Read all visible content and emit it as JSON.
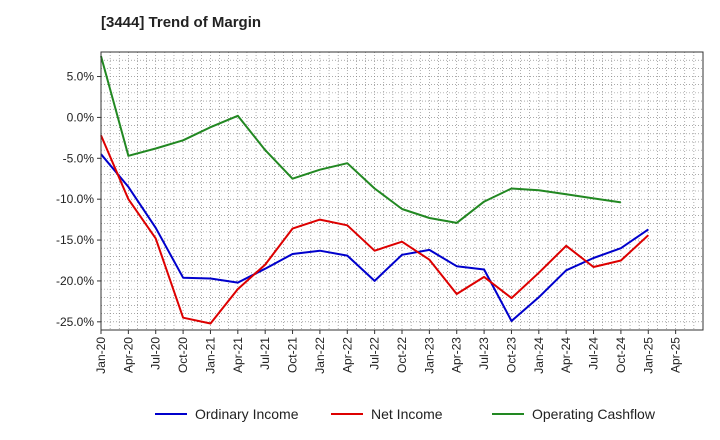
{
  "chart_data": {
    "type": "line",
    "title": "[3444]  Trend of Margin",
    "xlabel": "",
    "ylabel": "",
    "x_ticks": [
      "Jan-20",
      "Apr-20",
      "Jul-20",
      "Oct-20",
      "Jan-21",
      "Apr-21",
      "Jul-21",
      "Oct-21",
      "Jan-22",
      "Apr-22",
      "Jul-22",
      "Oct-22",
      "Jan-23",
      "Apr-23",
      "Jul-23",
      "Oct-23",
      "Jan-24",
      "Apr-24",
      "Jul-24",
      "Oct-24",
      "Jan-25",
      "Apr-25"
    ],
    "y_ticks": [
      "5.0%",
      "0.0%",
      "-5.0%",
      "-10.0%",
      "-15.0%",
      "-20.0%",
      "-25.0%"
    ],
    "y_tick_values": [
      5,
      0,
      -5,
      -10,
      -15,
      -20,
      -25
    ],
    "ylim": [
      -26,
      8
    ],
    "grid": true,
    "legend_position": "bottom",
    "series": [
      {
        "name": "Ordinary Income",
        "color": "#0000cc",
        "x": [
          "Jan-20",
          "Apr-20",
          "Jul-20",
          "Oct-20",
          "Jan-21",
          "Apr-21",
          "Jul-21",
          "Oct-21",
          "Jan-22",
          "Apr-22",
          "Jul-22",
          "Oct-22",
          "Jan-23",
          "Apr-23",
          "Jul-23",
          "Oct-23",
          "Jan-24",
          "Apr-24",
          "Jul-24",
          "Oct-24",
          "Jan-25"
        ],
        "values": [
          -4.5,
          -8.5,
          -13.5,
          -19.6,
          -19.7,
          -20.2,
          -18.5,
          -16.7,
          -16.3,
          -16.9,
          -20.0,
          -16.8,
          -16.2,
          -18.2,
          -18.6,
          -24.9,
          -22.0,
          -18.7,
          -17.2,
          -16.0,
          -13.7
        ]
      },
      {
        "name": "Net Income",
        "color": "#dd0000",
        "x": [
          "Jan-20",
          "Apr-20",
          "Jul-20",
          "Oct-20",
          "Jan-21",
          "Apr-21",
          "Jul-21",
          "Oct-21",
          "Jan-22",
          "Apr-22",
          "Jul-22",
          "Oct-22",
          "Jan-23",
          "Apr-23",
          "Jul-23",
          "Oct-23",
          "Jan-24",
          "Apr-24",
          "Jul-24",
          "Oct-24",
          "Jan-25"
        ],
        "values": [
          -2.2,
          -10.0,
          -14.8,
          -24.5,
          -25.2,
          -21.0,
          -18.0,
          -13.6,
          -12.5,
          -13.2,
          -16.3,
          -15.2,
          -17.4,
          -21.6,
          -19.5,
          -22.1,
          -19.0,
          -15.7,
          -18.3,
          -17.5,
          -14.4
        ]
      },
      {
        "name": "Operating Cashflow",
        "color": "#228822",
        "x": [
          "Jan-20",
          "Apr-20",
          "Jul-20",
          "Oct-20",
          "Jan-21",
          "Apr-21",
          "Jul-21",
          "Oct-21",
          "Jan-22",
          "Apr-22",
          "Jul-22",
          "Oct-22",
          "Jan-23",
          "Apr-23",
          "Jul-23",
          "Oct-23",
          "Jan-24",
          "Apr-24",
          "Jul-24",
          "Oct-24"
        ],
        "values": [
          7.5,
          -4.7,
          -3.8,
          -2.8,
          -1.2,
          0.2,
          -4.0,
          -7.5,
          -6.4,
          -5.6,
          -8.7,
          -11.2,
          -12.3,
          -12.9,
          -10.3,
          -8.7,
          -8.9,
          -9.4,
          -9.9,
          -10.4
        ]
      }
    ]
  }
}
